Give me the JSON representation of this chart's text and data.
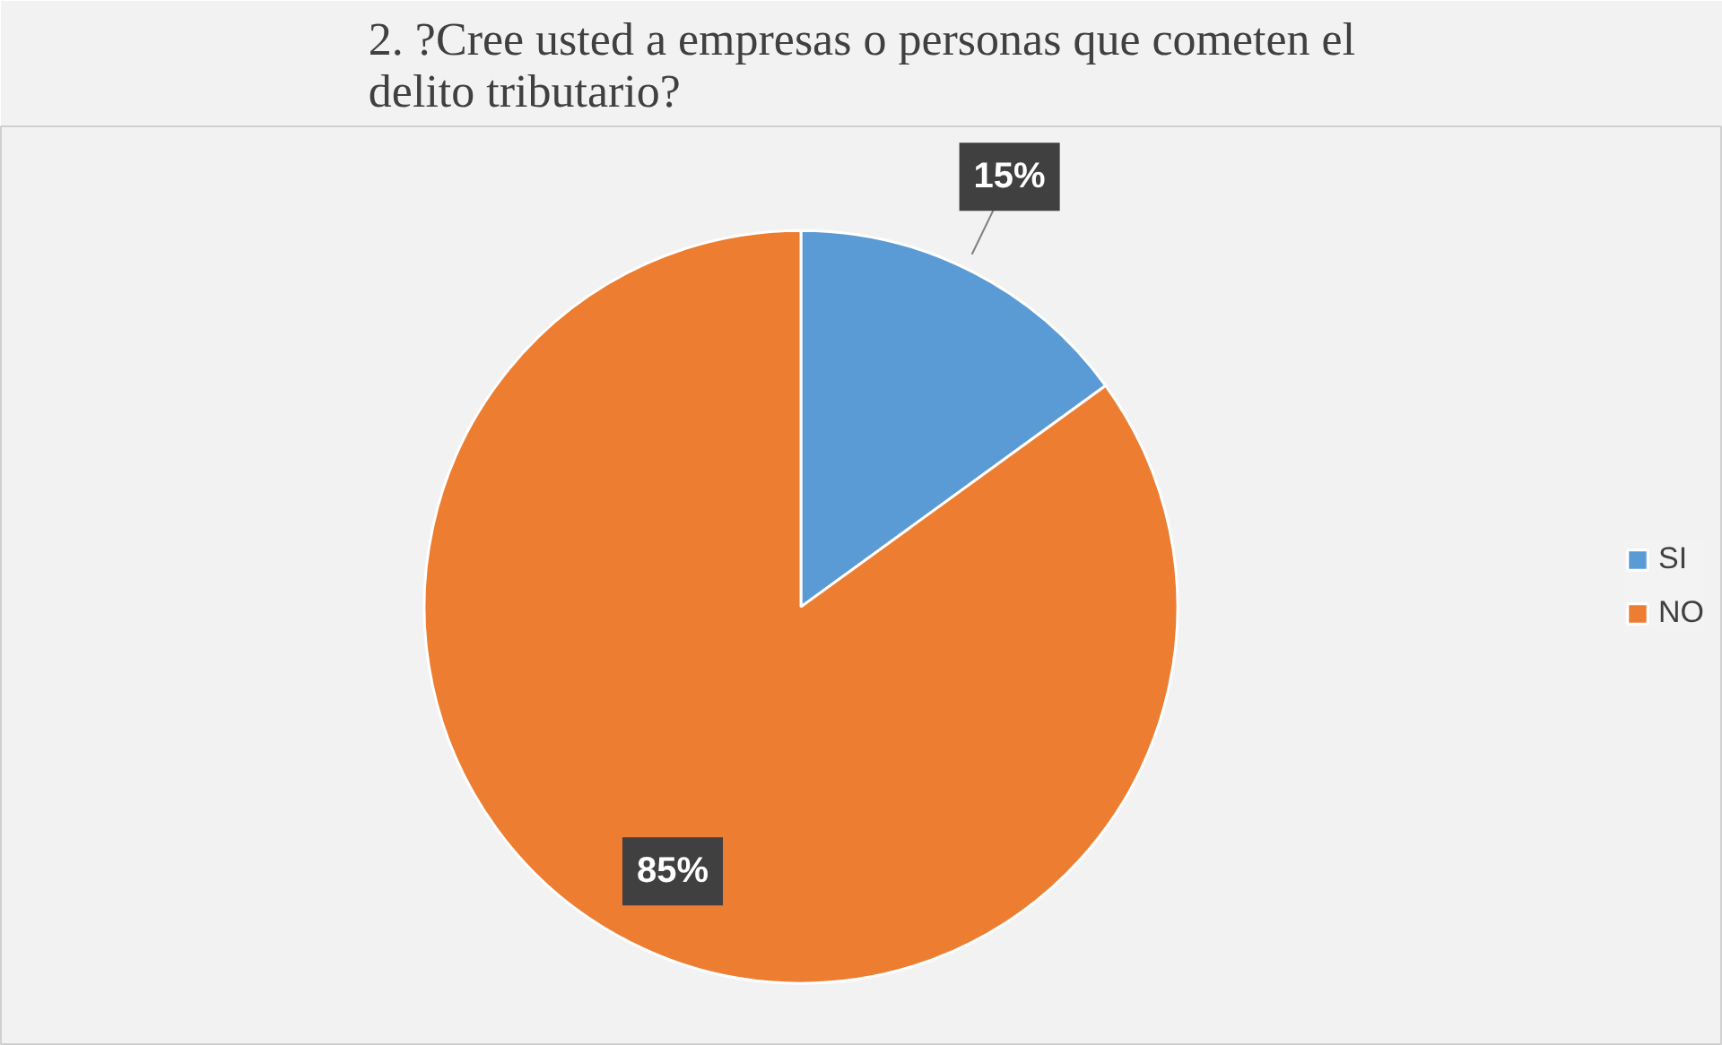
{
  "chart_data": {
    "type": "pie",
    "title": "2. ?Cree usted a empresas o personas que cometen el delito tributario?",
    "categories": [
      "SI",
      "NO"
    ],
    "values": [
      15,
      85
    ],
    "colors": [
      "#5b9bd5",
      "#ed7d31"
    ],
    "value_labels": [
      "15%",
      "85%"
    ],
    "legend": "right"
  }
}
